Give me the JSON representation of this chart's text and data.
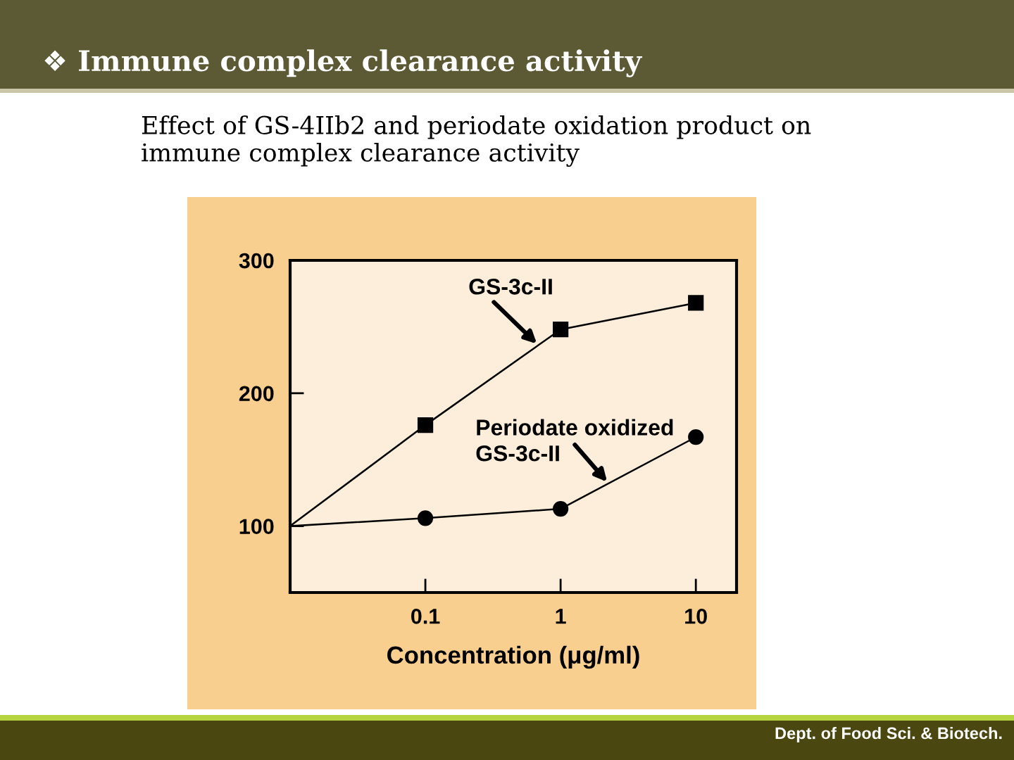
{
  "chart_data": {
    "type": "line",
    "title": "❖ Immune complex clearance activity",
    "subtitle": "Effect of GS-4IIb2 and periodate oxidation product on\nimmune complex clearance activity",
    "xlabel": "Concentration (μg/ml)",
    "annotations": [
      "Dept. of Food Sci. & Biotech."
    ],
    "log": "x",
    "x": [
      0.01,
      0.1,
      1,
      10
    ],
    "series": [
      {
        "name": "GS-3c-II",
        "color": "#000000",
        "marker": "square",
        "values": [
          100,
          176,
          248,
          268
        ]
      },
      {
        "name": "Periodate oxidized\nGS-3c-II",
        "color": "#000000",
        "marker": "circle",
        "values": [
          100,
          106,
          113,
          167
        ]
      }
    ],
    "xlim": [
      0.01,
      20
    ],
    "xticks": [
      0.1,
      1,
      10
    ],
    "ylim": [
      50,
      300
    ],
    "yticks": [
      100,
      200,
      300
    ],
    "grid": false,
    "legend": false,
    "line_style": "solid"
  }
}
